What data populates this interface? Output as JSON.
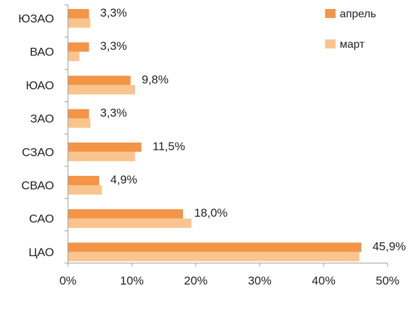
{
  "chart_data": {
    "type": "bar",
    "orientation": "horizontal",
    "categories": [
      "ЮЗАО",
      "ВАО",
      "ЮАО",
      "ЗАО",
      "СЗАО",
      "СВАО",
      "САО",
      "ЦАО"
    ],
    "series": [
      {
        "name": "апрель",
        "color": "#F39447",
        "values": [
          3.3,
          3.3,
          9.8,
          3.3,
          11.5,
          4.9,
          18.0,
          45.9
        ]
      },
      {
        "name": "март",
        "color": "#F9C48E",
        "values": [
          3.5,
          1.8,
          10.5,
          3.5,
          10.5,
          5.3,
          19.3,
          45.6
        ]
      }
    ],
    "data_labels": [
      "3,3%",
      "3,3%",
      "9,8%",
      "3,3%",
      "11,5%",
      "4,9%",
      "18,0%",
      "45,9%"
    ],
    "x_ticks": [
      "0%",
      "10%",
      "20%",
      "30%",
      "40%",
      "50%"
    ],
    "xlim": [
      0,
      50
    ],
    "title": "",
    "xlabel": "",
    "ylabel": "",
    "legend_position": "top-right",
    "grid": false
  }
}
